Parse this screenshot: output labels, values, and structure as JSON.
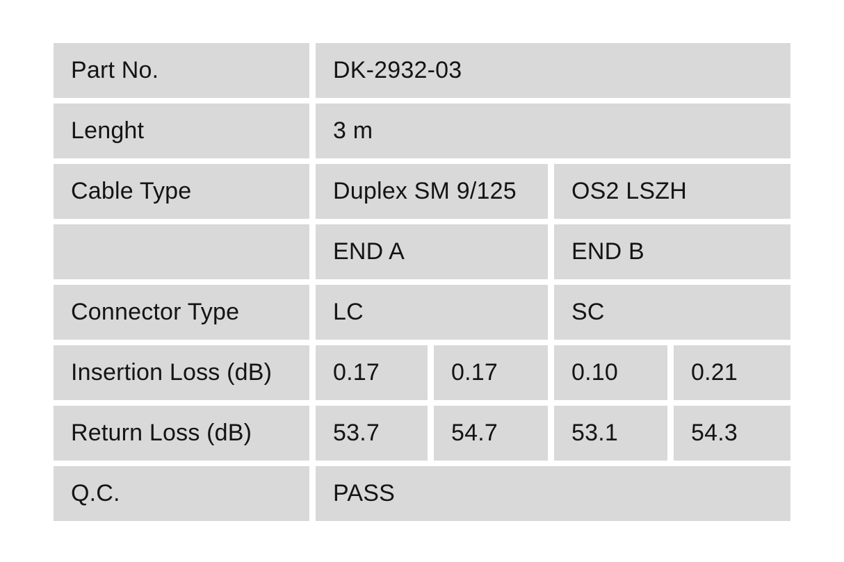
{
  "table": {
    "columns": 5,
    "colors": {
      "cell_bg": "#d9d9d9",
      "page_bg": "#ffffff",
      "text": "#141414"
    },
    "rows": [
      {
        "label": "Part No.",
        "values": [
          "DK-2932-03"
        ]
      },
      {
        "label": "Lenght",
        "values": [
          "3 m"
        ]
      },
      {
        "label": "Cable Type",
        "values": [
          "Duplex SM 9/125",
          "OS2 LSZH"
        ]
      },
      {
        "label": "",
        "values": [
          "END A",
          "END B"
        ]
      },
      {
        "label": "Connector Type",
        "values": [
          "LC",
          "SC"
        ]
      },
      {
        "label": "Insertion Loss (dB)",
        "values": [
          "0.17",
          "0.17",
          "0.10",
          "0.21"
        ]
      },
      {
        "label": "Return Loss (dB)",
        "values": [
          "53.7",
          "54.7",
          "53.1",
          "54.3"
        ]
      },
      {
        "label": "Q.C.",
        "values": [
          "PASS"
        ]
      }
    ]
  }
}
